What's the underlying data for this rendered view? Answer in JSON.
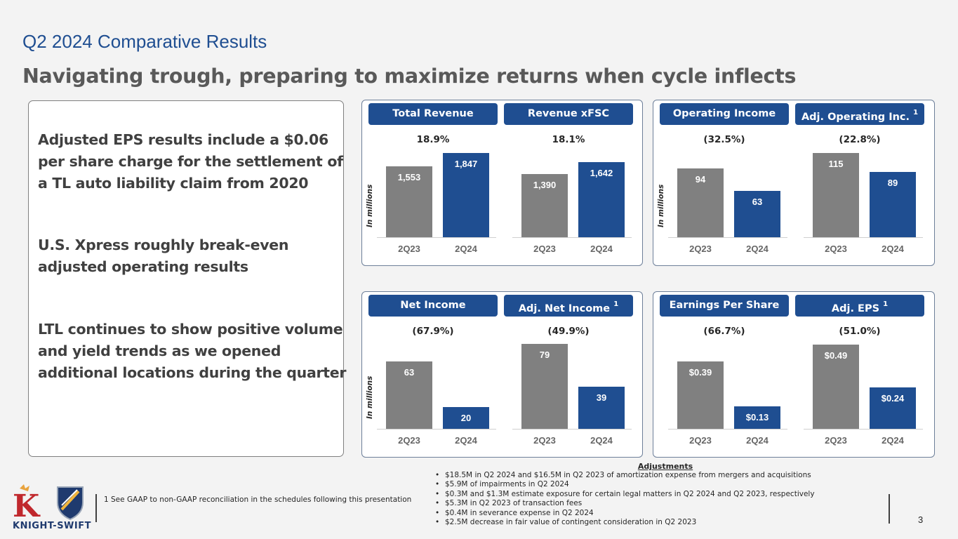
{
  "section_title": "Q2 2024 Comparative Results",
  "headline": "Navigating trough, preparing to maximize returns when cycle inflects",
  "bullets": [
    "Adjusted EPS results include a $0.06 per share charge for the settlement of a TL auto liability claim from 2020",
    "U.S. Xpress roughly break-even adjusted operating results",
    "LTL continues to show positive volume and yield trends as we opened additional locations during the quarter"
  ],
  "y_axis_label": "In millions",
  "chart_data": [
    {
      "type": "bar",
      "title": "Total Revenue",
      "footnote_ref": "",
      "change": "18.9%",
      "categories": [
        "2Q23",
        "2Q24"
      ],
      "values": [
        1553,
        1847
      ],
      "value_labels": [
        "1,553",
        "1,847"
      ]
    },
    {
      "type": "bar",
      "title": "Revenue xFSC",
      "footnote_ref": "",
      "change": "18.1%",
      "categories": [
        "2Q23",
        "2Q24"
      ],
      "values": [
        1390,
        1642
      ],
      "value_labels": [
        "1,390",
        "1,642"
      ]
    },
    {
      "type": "bar",
      "title": "Operating Income",
      "footnote_ref": "",
      "change": "(32.5%)",
      "categories": [
        "2Q23",
        "2Q24"
      ],
      "values": [
        94,
        63
      ],
      "value_labels": [
        "94",
        "63"
      ]
    },
    {
      "type": "bar",
      "title": "Adj. Operating Inc.",
      "footnote_ref": "1",
      "change": "(22.8%)",
      "categories": [
        "2Q23",
        "2Q24"
      ],
      "values": [
        115,
        89
      ],
      "value_labels": [
        "115",
        "89"
      ]
    },
    {
      "type": "bar",
      "title": "Net Income",
      "footnote_ref": "",
      "change": "(67.9%)",
      "categories": [
        "2Q23",
        "2Q24"
      ],
      "values": [
        63,
        20
      ],
      "value_labels": [
        "63",
        "20"
      ]
    },
    {
      "type": "bar",
      "title": "Adj. Net Income",
      "footnote_ref": "1",
      "change": "(49.9%)",
      "categories": [
        "2Q23",
        "2Q24"
      ],
      "values": [
        79,
        39
      ],
      "value_labels": [
        "79",
        "39"
      ]
    },
    {
      "type": "bar",
      "title": "Earnings Per Share",
      "footnote_ref": "",
      "change": "(66.7%)",
      "categories": [
        "2Q23",
        "2Q24"
      ],
      "values": [
        0.39,
        0.13
      ],
      "value_labels": [
        "$0.39",
        "$0.13"
      ]
    },
    {
      "type": "bar",
      "title": "Adj. EPS",
      "footnote_ref": "1",
      "change": "(51.0%)",
      "categories": [
        "2Q23",
        "2Q24"
      ],
      "values": [
        0.49,
        0.24
      ],
      "value_labels": [
        "$0.49",
        "$0.24"
      ]
    }
  ],
  "adjustments": {
    "title": "Adjustments",
    "items": [
      "$18.5M in Q2 2024 and $16.5M in Q2 2023 of amortization expense from mergers and acquisitions",
      "$5.9M of impairments in Q2 2024",
      "$0.3M and $1.3M estimate exposure for certain legal matters  in Q2 2024 and Q2 2023, respectively",
      "$5.3M in Q2 2023 of transaction fees",
      "$0.4M in severance expense in Q2 2024",
      "$2.5M decrease in fair value of contingent consideration in Q2 2023"
    ]
  },
  "footnote": "1  See GAAP to non-GAAP reconciliation in the schedules following this presentation",
  "logo_text": "KNIGHT-SWIFT",
  "logo_letter": "K",
  "page_number": "3",
  "colors": {
    "accent": "#1f4e91",
    "prior_year_bar": "#808080",
    "text_gray": "#595959"
  }
}
